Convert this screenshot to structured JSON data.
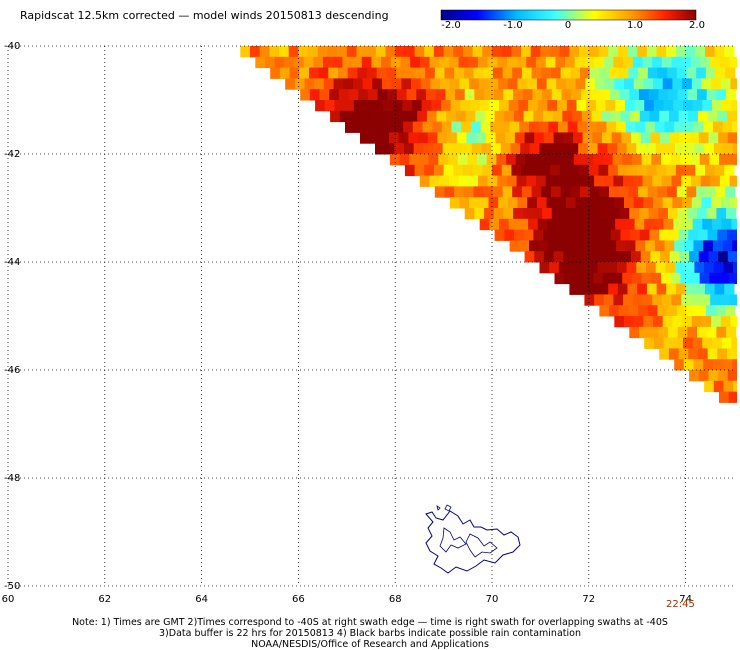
{
  "header": {
    "title": "Rapidscat 12.5km corrected — model winds 20150813 descending"
  },
  "colorbar": {
    "min": -2.0,
    "max": 2.0,
    "tick_labels": [
      "-2.0",
      "-1.0",
      "0",
      "1.0",
      "2.0"
    ],
    "tick_values": [
      -2.0,
      -1.0,
      0,
      1.0,
      2.0
    ],
    "colors": [
      "#00008b",
      "#0000ff",
      "#00bfff",
      "#40ffff",
      "#ffff00",
      "#ff9900",
      "#ff2000",
      "#8b0000"
    ]
  },
  "map": {
    "lon_range": [
      60,
      75
    ],
    "lat_range": [
      -50,
      -40
    ],
    "lon_ticks": [
      "60",
      "62",
      "64",
      "66",
      "68",
      "70",
      "72",
      "74"
    ],
    "lat_ticks": [
      "-40",
      "-42",
      "-44",
      "-46",
      "-48",
      "-50"
    ],
    "grid": "dotted",
    "coastline_color": "#000080",
    "swath_edge": {
      "from": [
        64.8,
        -40
      ],
      "to": [
        75,
        -46.6
      ]
    },
    "time_label": "22:45"
  },
  "notes": [
    "Note: 1) Times are GMT 2)Times correspond to -40S at right swath edge — time is right swath for overlapping swaths at -40S",
    "3)Data buffer is 22 hrs for 20150813 4) Black barbs indicate possible rain contamination",
    "NOAA/NESDIS/Office of Research and Applications"
  ]
}
